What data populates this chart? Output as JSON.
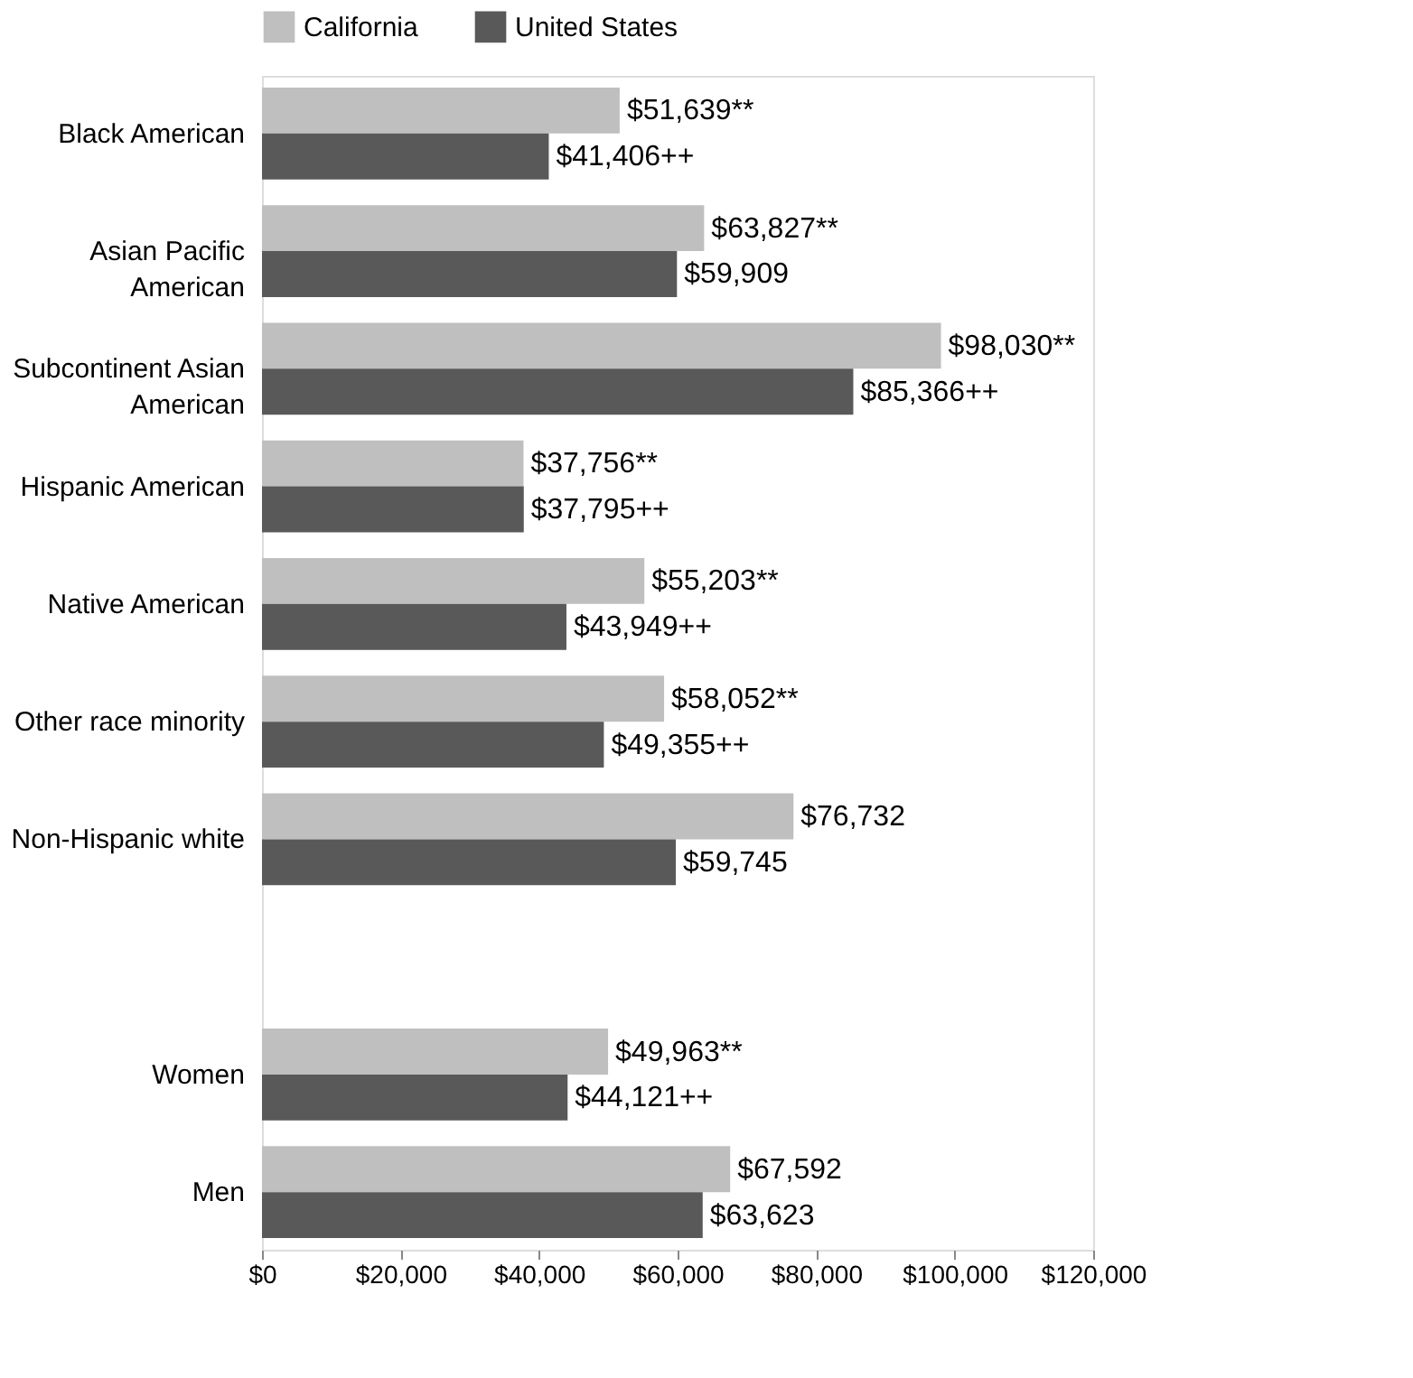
{
  "chart_data": {
    "type": "bar",
    "orientation": "horizontal",
    "legend": "top",
    "categories": [
      "Black American",
      "Asian Pacific\nAmerican",
      "Subcontinent Asian\nAmerican",
      "Hispanic American",
      "Native American",
      "Other race minority",
      "Non-Hispanic white",
      null,
      "Women",
      "Men"
    ],
    "series": [
      {
        "name": "California",
        "color": "#bfbfbf",
        "values": [
          51639,
          63827,
          98030,
          37756,
          55203,
          58052,
          76732,
          null,
          49963,
          67592
        ],
        "value_labels": [
          "$51,639**",
          "$63,827**",
          "$98,030**",
          "$37,756**",
          "$55,203**",
          "$58,052**",
          "$76,732",
          null,
          "$49,963**",
          "$67,592"
        ]
      },
      {
        "name": "United States",
        "color": "#595959",
        "values": [
          41406,
          59909,
          85366,
          37795,
          43949,
          49355,
          59745,
          null,
          44121,
          63623
        ],
        "value_labels": [
          "$41,406++",
          "$59,909",
          "$85,366++",
          "$37,795++",
          "$43,949++",
          "$49,355++",
          "$59,745",
          null,
          "$44,121++",
          "$63,623"
        ]
      }
    ],
    "xlim": [
      0,
      120000
    ],
    "xticks": [
      {
        "value": 0,
        "label": "$0"
      },
      {
        "value": 20000,
        "label": "$20,000"
      },
      {
        "value": 40000,
        "label": "$40,000"
      },
      {
        "value": 60000,
        "label": "$60,000"
      },
      {
        "value": 80000,
        "label": "$80,000"
      },
      {
        "value": 100000,
        "label": "$100,000"
      },
      {
        "value": 120000,
        "label": "$120,000"
      }
    ],
    "grid": false
  }
}
